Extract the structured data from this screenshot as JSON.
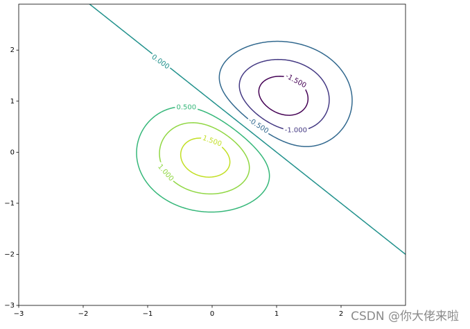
{
  "chart_data": {
    "type": "contour",
    "levels": [
      {
        "value": -1.5,
        "label": "-1.500"
      },
      {
        "value": -1,
        "label": "-1.000"
      },
      {
        "value": -0.5,
        "label": "-0.500"
      },
      {
        "value": 0,
        "label": "0.000"
      },
      {
        "value": 0.5,
        "label": "0.500"
      },
      {
        "value": 1,
        "label": "1.000"
      },
      {
        "value": 1.5,
        "label": "1.500"
      }
    ],
    "colors": [
      "#440154",
      "#443983",
      "#31688e",
      "#21918c",
      "#35b779",
      "#90d743",
      "#c2df23"
    ],
    "xlim": [
      -3,
      3
    ],
    "ylim": [
      -3,
      2.9
    ],
    "xticks": [
      {
        "value": -3,
        "label": "−3"
      },
      {
        "value": -2,
        "label": "−2"
      },
      {
        "value": -1,
        "label": "−1"
      },
      0,
      1,
      2
    ],
    "yticks": [
      {
        "value": -3,
        "label": "−3"
      },
      {
        "value": -2,
        "label": "−2"
      },
      {
        "value": -1,
        "label": "−1"
      },
      0,
      1,
      2
    ],
    "watermark": "CSDN @你大佬来啦"
  }
}
